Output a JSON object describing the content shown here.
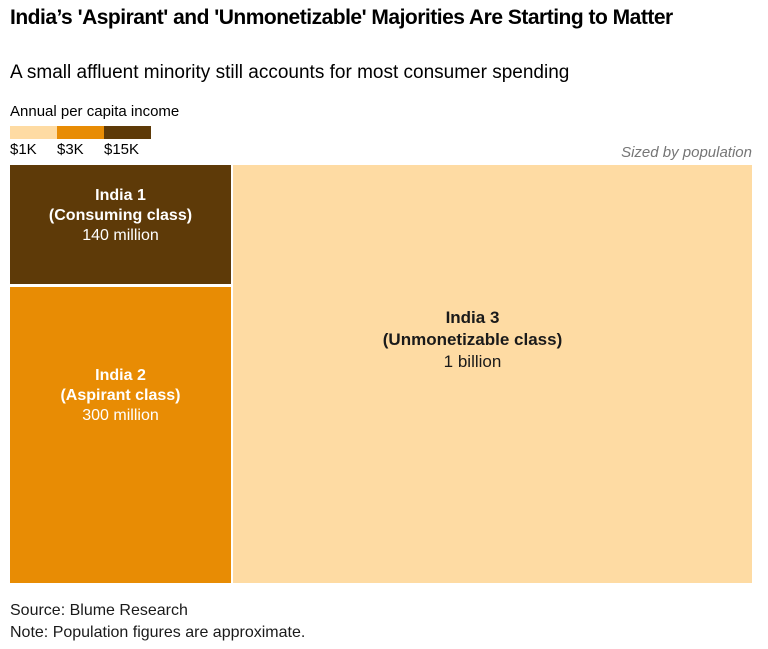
{
  "chart_data": {
    "type": "treemap",
    "title": "India’s 'Aspirant' and 'Unmonetizable' Majorities Are Starting to Matter",
    "subtitle": "A small affluent minority still accounts for most consumer spending",
    "sizing_note": "Sized by population",
    "legend": {
      "title": "Annual per capita income",
      "items": [
        {
          "label": "$1K",
          "color": "#FEDBA3"
        },
        {
          "label": "$3K",
          "color": "#E88C04"
        },
        {
          "label": "$15K",
          "color": "#5E3A08"
        }
      ]
    },
    "blocks": [
      {
        "name": "India 1",
        "class_label": "(Consuming class)",
        "population_label": "140 million",
        "population_millions": 140,
        "income_per_capita": "$15K",
        "color": "#5E3A08",
        "text_color": "#FFFFFF"
      },
      {
        "name": "India 2",
        "class_label": "(Aspirant class)",
        "population_label": "300 million",
        "population_millions": 300,
        "income_per_capita": "$3K",
        "color": "#E88C04",
        "text_color": "#FFFFFF"
      },
      {
        "name": "India 3",
        "class_label": "(Unmonetizable class)",
        "population_label": "1 billion",
        "population_millions": 1000,
        "income_per_capita": "$1K",
        "color": "#FEDBA3",
        "text_color": "#1A1A1A"
      }
    ],
    "source": "Source: Blume Research",
    "note": "Note: Population figures are approximate."
  }
}
